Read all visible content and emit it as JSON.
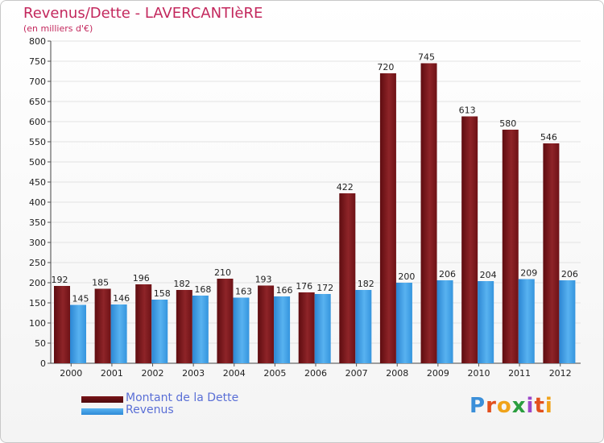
{
  "chart_data": {
    "type": "bar",
    "title": "Revenus/Dette - LAVERCANTIèRE",
    "subtitle": "(en milliers d'€)",
    "categories": [
      "2000",
      "2001",
      "2002",
      "2003",
      "2004",
      "2005",
      "2006",
      "2007",
      "2008",
      "2009",
      "2010",
      "2011",
      "2012"
    ],
    "series": [
      {
        "name": "Montant de la Dette",
        "color": "#8b1a1f",
        "values": [
          192,
          185,
          196,
          182,
          210,
          193,
          176,
          422,
          720,
          745,
          613,
          580,
          546
        ]
      },
      {
        "name": "Revenus",
        "color": "#3f9fe6",
        "values": [
          145,
          146,
          158,
          168,
          163,
          166,
          172,
          182,
          200,
          206,
          204,
          209,
          206
        ]
      }
    ],
    "ylim": [
      0,
      800
    ],
    "yticks": [
      0,
      50,
      100,
      150,
      200,
      250,
      300,
      350,
      400,
      450,
      500,
      550,
      600,
      650,
      700,
      750,
      800
    ],
    "grid": true,
    "xlabel": "",
    "ylabel": "",
    "legend_position": "bottom-left"
  },
  "brand": {
    "logo_text": "Proxiti"
  }
}
